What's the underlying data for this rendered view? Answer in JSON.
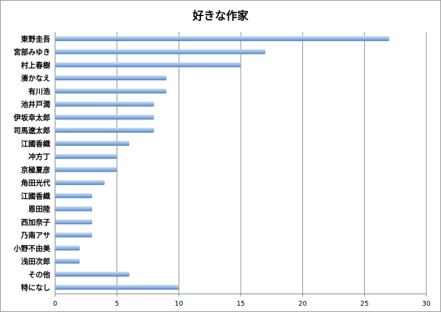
{
  "chart_data": {
    "type": "bar",
    "orientation": "horizontal",
    "title": "好きな作家",
    "categories": [
      "東野圭吾",
      "宮部みゆき",
      "村上春樹",
      "湊かなえ",
      "有川浩",
      "池井戸潤",
      "伊坂幸太郎",
      "司馬遼太郎",
      "江國香織",
      "冲方丁",
      "京極夏彦",
      "角田光代",
      "江國香織",
      "恩田陸",
      "西加奈子",
      "乃南アサ",
      "小野不由美",
      "浅田次郎",
      "その他",
      "特になし"
    ],
    "values": [
      27,
      17,
      15,
      9,
      9,
      8,
      8,
      8,
      6,
      5,
      5,
      4,
      3,
      3,
      3,
      3,
      2,
      2,
      6,
      10
    ],
    "xlim": [
      0,
      30
    ],
    "xticks": [
      0,
      5,
      10,
      15,
      20,
      25,
      30
    ],
    "grid": true,
    "legend": false,
    "xlabel": "",
    "ylabel": "",
    "colors": {
      "bar_light": "#c9dcf2",
      "bar_dark": "#4f81bd",
      "grid": "#8c8c8c"
    }
  }
}
